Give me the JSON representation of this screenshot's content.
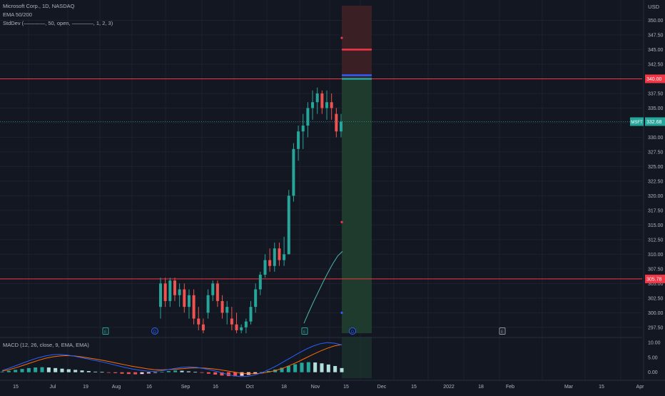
{
  "header": {
    "symbol_line": "Microsoft Corp., 1D, NASDAQ",
    "ema_line": "EMA 50/200",
    "stddev_line": "StdDev (————, 50, open, ————, 1, 2, 3)",
    "currency": "USD"
  },
  "macd_header": "MACD (12, 26, close, 9, EMA, EMA)",
  "colors": {
    "background": "#131722",
    "grid": "#1e222d",
    "up": "#26a69a",
    "down": "#ef5350",
    "resistance": "#f23645",
    "ema": "#4db6ac",
    "macd_line": "#2962ff",
    "signal_line": "#ff6d00",
    "target_zone": "#1f3b2e",
    "stop_zone": "#3a1f24"
  },
  "chart_data": [
    {
      "type": "candlestick",
      "ylim": [
        296.5,
        352.5
      ],
      "y_ticks": [
        "297.50",
        "300.00",
        "302.50",
        "305.00",
        "307.50",
        "310.00",
        "312.50",
        "315.00",
        "317.50",
        "320.00",
        "322.50",
        "325.00",
        "327.50",
        "330.00",
        "332.50",
        "335.00",
        "337.50",
        "340.00",
        "342.50",
        "345.00",
        "347.50",
        "350.00"
      ],
      "x_ticks": [
        "15",
        "Jul",
        "19",
        "Aug",
        "16",
        "Sep",
        "16",
        "Oct",
        "18",
        "Nov",
        "15",
        "Dec",
        "15",
        "2022",
        "18",
        "Feb",
        "Mar",
        "15",
        "Apr"
      ],
      "price_badges": [
        {
          "label": "340.00",
          "value": 340.0,
          "color": "#f23645"
        },
        {
          "label": "MSFT",
          "price": "332.68",
          "value": 332.68,
          "color": "#26a69a"
        },
        {
          "label": "305.78",
          "value": 305.78,
          "color": "#f23645"
        }
      ],
      "horizontal_lines": [
        {
          "value": 340.0,
          "color": "#f23645"
        },
        {
          "value": 305.78,
          "color": "#f23645"
        },
        {
          "value": 332.68,
          "color": "#26a69a",
          "style": "dotted"
        }
      ],
      "position_tool": {
        "entry": 340.0,
        "target_top": 296.5,
        "stop": 352.5,
        "levels": [
          {
            "value": 345.0,
            "color": "#f23645"
          },
          {
            "value": 340.6,
            "color": "#2962ff"
          },
          {
            "value": 340.0,
            "color": "#26a69a"
          }
        ],
        "dots": [
          {
            "value": 347.0,
            "color": "#f23645"
          },
          {
            "value": 315.5,
            "color": "#f23645"
          },
          {
            "value": 300.0,
            "color": "#2962ff"
          }
        ]
      },
      "candles": [
        {
          "o": 301,
          "h": 306,
          "l": 299,
          "c": 305,
          "up": true
        },
        {
          "o": 305,
          "h": 306,
          "l": 301,
          "c": 302,
          "up": false
        },
        {
          "o": 302,
          "h": 306,
          "l": 301,
          "c": 305.5,
          "up": true
        },
        {
          "o": 305.5,
          "h": 306,
          "l": 302,
          "c": 303,
          "up": false
        },
        {
          "o": 303,
          "h": 305,
          "l": 301,
          "c": 304,
          "up": true
        },
        {
          "o": 304,
          "h": 305,
          "l": 300,
          "c": 301,
          "up": false
        },
        {
          "o": 301,
          "h": 304,
          "l": 299,
          "c": 303,
          "up": true
        },
        {
          "o": 303,
          "h": 304,
          "l": 298,
          "c": 299,
          "up": false
        },
        {
          "o": 299,
          "h": 301,
          "l": 297,
          "c": 298,
          "up": false
        },
        {
          "o": 298,
          "h": 299,
          "l": 296.5,
          "c": 297,
          "up": false
        },
        {
          "o": 300,
          "h": 304,
          "l": 299,
          "c": 303,
          "up": true
        },
        {
          "o": 303,
          "h": 305.5,
          "l": 302,
          "c": 305,
          "up": true
        },
        {
          "o": 305,
          "h": 305.5,
          "l": 301,
          "c": 302,
          "up": false
        },
        {
          "o": 302,
          "h": 303,
          "l": 299,
          "c": 300,
          "up": false
        },
        {
          "o": 300,
          "h": 302,
          "l": 298,
          "c": 301,
          "up": true
        },
        {
          "o": 299,
          "h": 301,
          "l": 297,
          "c": 298,
          "up": false
        },
        {
          "o": 298,
          "h": 300,
          "l": 296.5,
          "c": 297,
          "up": false
        },
        {
          "o": 297,
          "h": 298,
          "l": 296.5,
          "c": 297.5,
          "up": true
        },
        {
          "o": 297.5,
          "h": 299,
          "l": 296.5,
          "c": 298.5,
          "up": true
        },
        {
          "o": 298.5,
          "h": 302,
          "l": 298,
          "c": 301,
          "up": true
        },
        {
          "o": 301,
          "h": 305,
          "l": 300,
          "c": 304,
          "up": true
        },
        {
          "o": 304,
          "h": 307,
          "l": 303,
          "c": 306.5,
          "up": true
        },
        {
          "o": 306.5,
          "h": 310,
          "l": 306,
          "c": 309,
          "up": true
        },
        {
          "o": 309,
          "h": 311,
          "l": 307,
          "c": 308,
          "up": false
        },
        {
          "o": 308,
          "h": 312,
          "l": 307,
          "c": 311,
          "up": true
        },
        {
          "o": 311,
          "h": 312,
          "l": 308,
          "c": 309,
          "up": false
        },
        {
          "o": 309,
          "h": 313,
          "l": 308,
          "c": 310,
          "up": true
        },
        {
          "o": 310,
          "h": 321,
          "l": 310,
          "c": 320,
          "up": true
        },
        {
          "o": 320,
          "h": 329,
          "l": 319,
          "c": 328,
          "up": true
        },
        {
          "o": 328,
          "h": 332,
          "l": 326,
          "c": 331,
          "up": true
        },
        {
          "o": 331,
          "h": 334,
          "l": 328,
          "c": 332,
          "up": true
        },
        {
          "o": 332,
          "h": 336,
          "l": 330,
          "c": 335,
          "up": true
        },
        {
          "o": 335,
          "h": 338,
          "l": 333,
          "c": 336,
          "up": true
        },
        {
          "o": 336,
          "h": 338.5,
          "l": 334,
          "c": 337.5,
          "up": true
        },
        {
          "o": 337.5,
          "h": 338,
          "l": 334,
          "c": 335,
          "up": false
        },
        {
          "o": 335,
          "h": 338,
          "l": 333,
          "c": 336,
          "up": true
        },
        {
          "o": 336,
          "h": 337.5,
          "l": 333,
          "c": 335,
          "up": false
        },
        {
          "o": 334,
          "h": 335,
          "l": 330,
          "c": 331,
          "up": false
        },
        {
          "o": 331,
          "h": 334,
          "l": 330,
          "c": 332.68,
          "up": true
        }
      ],
      "ema": [
        298.2,
        300.1,
        301.9,
        303.6,
        305.3,
        306.9,
        308.4,
        309.7,
        310.5
      ]
    },
    {
      "type": "bar",
      "title": "MACD (12, 26, close, 9, EMA, EMA)",
      "ylim": [
        -2.0,
        11.0
      ],
      "y_ticks": [
        "0.00",
        "5.00",
        "10.00"
      ],
      "histogram": [
        0.2,
        0.5,
        0.8,
        1.1,
        1.4,
        1.6,
        1.7,
        1.6,
        1.4,
        1.2,
        1.0,
        0.8,
        0.6,
        0.4,
        0.2,
        0.1,
        -0.1,
        -0.3,
        -0.5,
        -0.6,
        -0.7,
        -0.6,
        -0.4,
        -0.2,
        0.1,
        0.4,
        0.6,
        0.5,
        0.3,
        0.1,
        -0.2,
        -0.5,
        -0.8,
        -1.1,
        -1.3,
        -1.4,
        -1.2,
        -0.9,
        -0.5,
        -0.1,
        0.4,
        0.9,
        1.5,
        2.1,
        2.7,
        3.2,
        3.4,
        3.3,
        3.0,
        2.6,
        2.1,
        1.4
      ],
      "macd": [
        0.6,
        1.4,
        2.3,
        3.2,
        4.1,
        4.9,
        5.5,
        5.9,
        6.0,
        5.8,
        5.4,
        4.9,
        4.4,
        3.9,
        3.4,
        2.8,
        2.2,
        1.6,
        1.1,
        0.7,
        0.4,
        0.3,
        0.5,
        0.9,
        1.3,
        1.7,
        1.8,
        1.6,
        1.2,
        0.7,
        0.1,
        -0.6,
        -1.2,
        -1.5,
        -1.4,
        -0.9,
        -0.1,
        1.0,
        2.2,
        3.6,
        5.0,
        6.4,
        7.7,
        8.8,
        9.6,
        10.0,
        9.8,
        9.2
      ],
      "signal": [
        0.4,
        0.9,
        1.6,
        2.4,
        3.2,
        4.0,
        4.7,
        5.2,
        5.5,
        5.6,
        5.5,
        5.2,
        4.8,
        4.4,
        4.0,
        3.5,
        3.0,
        2.5,
        2.0,
        1.6,
        1.2,
        0.9,
        0.8,
        0.9,
        1.0,
        1.2,
        1.4,
        1.5,
        1.4,
        1.2,
        0.9,
        0.5,
        0.1,
        -0.3,
        -0.5,
        -0.5,
        -0.3,
        0.1,
        0.7,
        1.5,
        2.5,
        3.6,
        4.8,
        6.0,
        7.1,
        8.1,
        8.9,
        9.3
      ]
    }
  ]
}
